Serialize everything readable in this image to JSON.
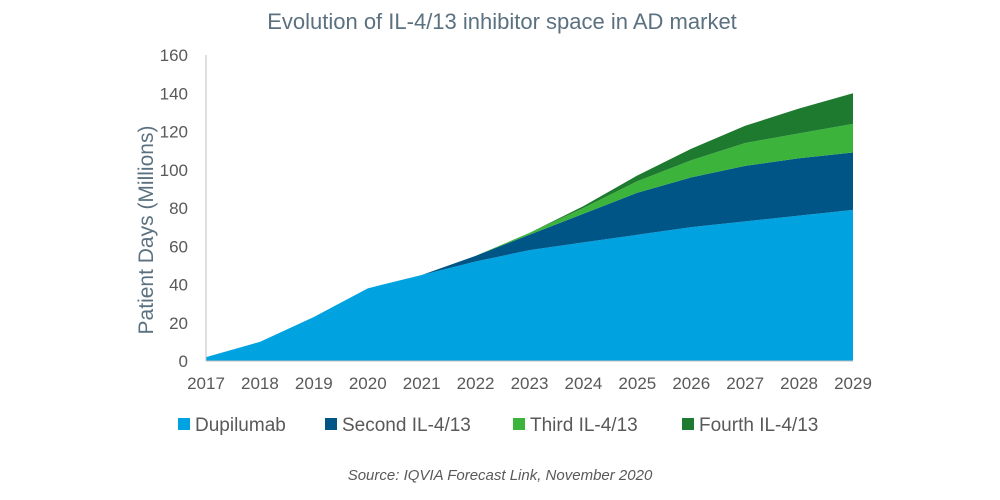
{
  "chart_data": {
    "type": "area",
    "stacked": true,
    "title": "Evolution of IL-4/13 inhibitor space in AD market",
    "xlabel": "",
    "ylabel": "Patient Days (Millions)",
    "ylim": [
      0,
      160
    ],
    "yticks": [
      0,
      20,
      40,
      60,
      80,
      100,
      120,
      140,
      160
    ],
    "x": [
      "2017",
      "2018",
      "2019",
      "2020",
      "2021",
      "2022",
      "2023",
      "2024",
      "2025",
      "2026",
      "2027",
      "2028",
      "2029"
    ],
    "series": [
      {
        "name": "Dupilumab",
        "color": "#00a3e0",
        "values": [
          2,
          10,
          23,
          38,
          45,
          52,
          58,
          62,
          66,
          70,
          73,
          76,
          79
        ]
      },
      {
        "name": "Second IL-4/13",
        "color": "#005587",
        "values": [
          0,
          0,
          0,
          0,
          0,
          3,
          8,
          15,
          22,
          26,
          29,
          30,
          30
        ]
      },
      {
        "name": "Third IL-4/13",
        "color": "#3cb43c",
        "values": [
          0,
          0,
          0,
          0,
          0,
          0,
          1,
          3,
          6,
          9,
          12,
          13,
          15
        ]
      },
      {
        "name": "Fourth IL-4/13",
        "color": "#1e7a2e",
        "values": [
          0,
          0,
          0,
          0,
          0,
          0,
          0,
          1,
          3,
          6,
          9,
          13,
          16
        ]
      }
    ],
    "grid": false,
    "legend_position": "bottom",
    "source": "Source: IQVIA Forecast Link, November 2020"
  }
}
